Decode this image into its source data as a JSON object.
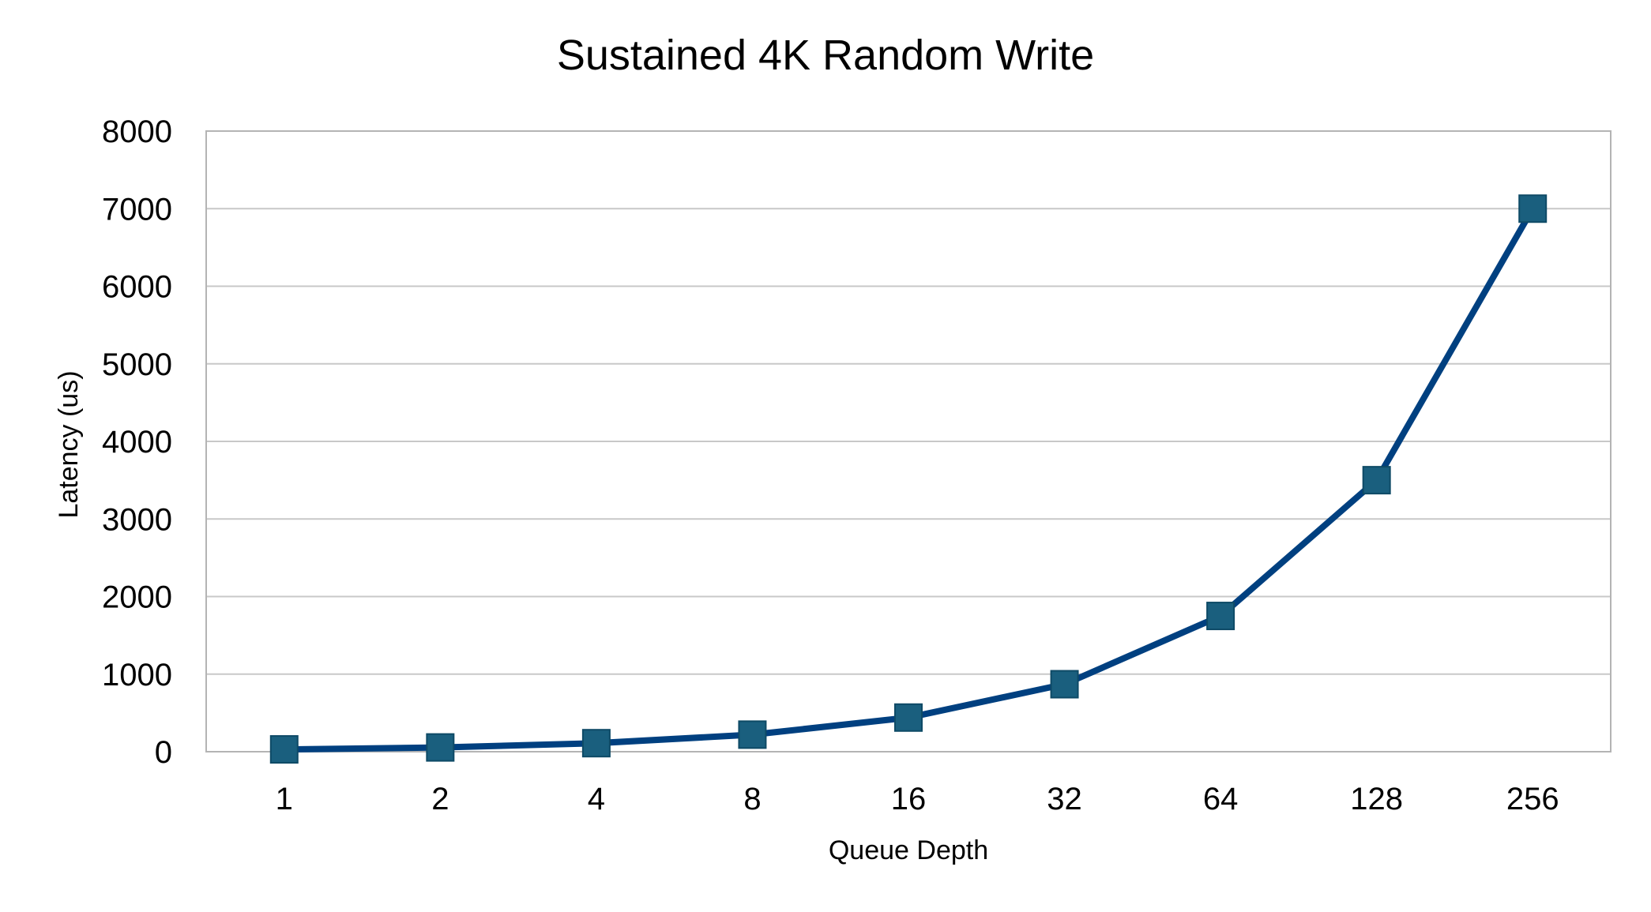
{
  "chart_data": {
    "type": "line",
    "title": "Sustained 4K Random Write",
    "xlabel": "Queue Depth",
    "ylabel": "Latency (us)",
    "categories": [
      "1",
      "2",
      "4",
      "8",
      "16",
      "32",
      "64",
      "128",
      "256"
    ],
    "series": [
      {
        "values": [
          30,
          55,
          110,
          220,
          440,
          870,
          1750,
          3500,
          7000
        ],
        "line_color": "#004080",
        "marker_color": "#1a5f7e",
        "marker": "square"
      }
    ],
    "ylim": [
      0,
      8000
    ],
    "yticks": [
      0,
      1000,
      2000,
      3000,
      4000,
      5000,
      6000,
      7000,
      8000
    ],
    "grid": true,
    "legend": "none"
  }
}
